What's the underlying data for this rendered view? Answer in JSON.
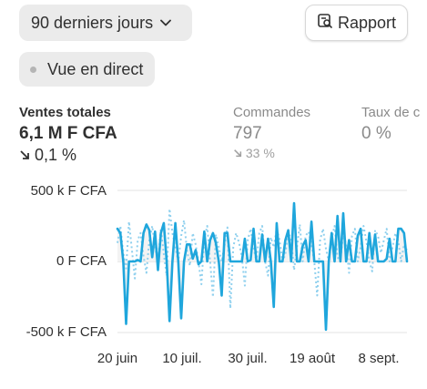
{
  "filters": {
    "period_label": "90 derniers jours",
    "live_label": "Vue en direct"
  },
  "report_button": {
    "label": "Rapport",
    "icon": "report-search-icon"
  },
  "metrics": {
    "sales": {
      "label": "Ventes totales",
      "value": "6,1 M F CFA",
      "delta": "0,1 %",
      "direction": "down"
    },
    "orders": {
      "label": "Commandes",
      "value": "797",
      "delta": "33 %",
      "direction": "down"
    },
    "conversion": {
      "label": "Taux de c",
      "value": "0 %"
    }
  },
  "chart_data": {
    "type": "line",
    "yticks": [
      "500 k F CFA",
      "0 F CFA",
      "-500 k F CFA"
    ],
    "xticks": [
      "20 juin",
      "10 juil.",
      "30 juil.",
      "19 août",
      "8 sept."
    ],
    "ylim": [
      -500000,
      500000
    ],
    "grid": true,
    "colors": {
      "current": "#1fa6dc",
      "previous": "#8fd0ee",
      "fill": "#f3f3f3"
    },
    "series": [
      {
        "style": "solid",
        "values": [
          230000,
          200000,
          0,
          -440000,
          0,
          0,
          0,
          10000,
          0,
          200000,
          260000,
          220000,
          30000,
          210000,
          -60000,
          200000,
          270000,
          0,
          -420000,
          0,
          270000,
          0,
          -400000,
          0,
          120000,
          120000,
          20000,
          80000,
          -20000,
          0,
          210000,
          0,
          150000,
          200000,
          130000,
          0,
          -240000,
          200000,
          200000,
          0,
          0,
          0,
          0,
          0,
          160000,
          0,
          10000,
          230000,
          0,
          0,
          190000,
          0,
          160000,
          0,
          -320000,
          270000,
          0,
          0,
          150000,
          220000,
          0,
          410000,
          0,
          0,
          110000,
          150000,
          0,
          280000,
          0,
          0,
          0,
          0,
          -480000,
          0,
          200000,
          0,
          320000,
          0,
          340000,
          0,
          150000,
          0,
          0,
          180000,
          230000,
          0,
          0,
          200000,
          20000,
          190000,
          0,
          0,
          0,
          20000,
          160000,
          0,
          0,
          230000,
          230000,
          200000,
          0
        ]
      },
      {
        "style": "dotted",
        "values": [
          130000,
          250000,
          60000,
          -50000,
          280000,
          80000,
          -120000,
          150000,
          200000,
          40000,
          -80000,
          150000,
          250000,
          100000,
          0,
          230000,
          50000,
          -100000,
          370000,
          200000,
          100000,
          0,
          180000,
          290000,
          80000,
          -30000,
          200000,
          120000,
          0,
          -160000,
          160000,
          250000,
          0,
          -250000,
          190000,
          100000,
          0,
          120000,
          240000,
          -330000,
          100000,
          200000,
          130000,
          30000,
          -170000,
          150000,
          230000,
          100000,
          0,
          200000,
          250000,
          0,
          -100000,
          170000,
          100000,
          230000,
          150000,
          0,
          50000,
          200000,
          160000,
          -60000,
          100000,
          260000,
          0,
          180000,
          210000,
          120000,
          0,
          -240000,
          150000,
          230000,
          90000,
          0,
          160000,
          250000,
          30000,
          0,
          200000,
          120000,
          -80000,
          180000,
          230000,
          0,
          100000,
          250000,
          140000,
          0,
          -70000,
          220000,
          180000,
          60000,
          150000,
          230000,
          0,
          100000,
          200000,
          140000,
          0,
          120000,
          80000
        ]
      }
    ]
  }
}
